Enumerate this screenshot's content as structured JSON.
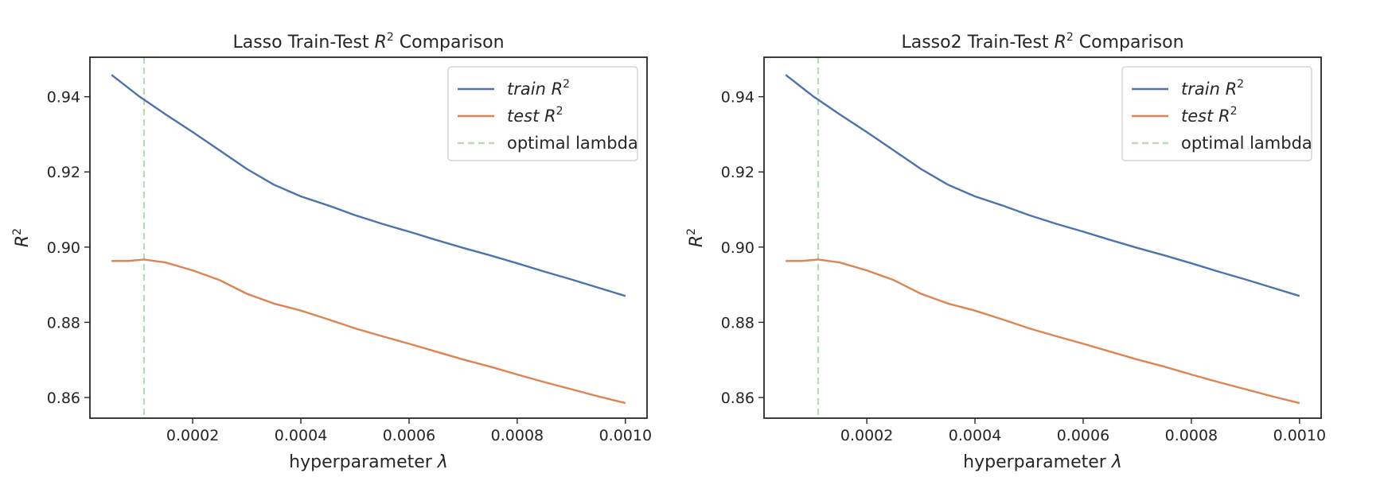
{
  "chart_data": [
    {
      "type": "line",
      "title_prefix": "Lasso Train-Test ",
      "title_symbol": "R",
      "title_sup": "2",
      "title_suffix": " Comparison",
      "xlabel": "hyperparameter ",
      "xlabel_symbol": "λ",
      "ylabel_symbol": "R",
      "ylabel_sup": "2",
      "xlim": [
        1e-05,
        0.00104
      ],
      "ylim": [
        0.8545,
        0.9505
      ],
      "x_ticks": [
        0.0002,
        0.0004,
        0.0006,
        0.0008,
        0.001
      ],
      "x_tick_labels": [
        "0.0002",
        "0.0004",
        "0.0006",
        "0.0008",
        "0.0010"
      ],
      "y_ticks": [
        0.86,
        0.88,
        0.9,
        0.92,
        0.94
      ],
      "y_tick_labels": [
        "0.86",
        "0.88",
        "0.90",
        "0.92",
        "0.94"
      ],
      "grid": false,
      "legend_position": "top-right",
      "optimal_lambda": 0.00011,
      "series": [
        {
          "name": "train",
          "legend_sup": "2",
          "legend_symbol": "R",
          "color": "#4c72b0",
          "style": "solid",
          "x": [
            5e-05,
            0.0001,
            0.00015,
            0.0002,
            0.00025,
            0.0003,
            0.00035,
            0.0004,
            0.00045,
            0.0005,
            0.00055,
            0.0006,
            0.00065,
            0.0007,
            0.00075,
            0.0008,
            0.00085,
            0.0009,
            0.00095,
            0.001
          ],
          "y": [
            0.9458,
            0.9402,
            0.9353,
            0.9306,
            0.9257,
            0.9208,
            0.9166,
            0.9135,
            0.9111,
            0.9085,
            0.9062,
            0.9041,
            0.9019,
            0.8998,
            0.8978,
            0.8957,
            0.8935,
            0.8914,
            0.8892,
            0.887
          ]
        },
        {
          "name": "test",
          "legend_sup": "2",
          "legend_symbol": "R",
          "color": "#dd8452",
          "style": "solid",
          "x": [
            5e-05,
            8e-05,
            0.00011,
            0.00015,
            0.0002,
            0.00025,
            0.0003,
            0.00035,
            0.0004,
            0.00045,
            0.0005,
            0.00055,
            0.0006,
            0.00065,
            0.0007,
            0.00075,
            0.0008,
            0.00085,
            0.0009,
            0.00095,
            0.001
          ],
          "y": [
            0.8963,
            0.8963,
            0.8967,
            0.8959,
            0.8938,
            0.8912,
            0.8876,
            0.885,
            0.8831,
            0.8808,
            0.8784,
            0.8763,
            0.8743,
            0.8722,
            0.8701,
            0.8682,
            0.8661,
            0.8641,
            0.8622,
            0.8603,
            0.8585
          ]
        }
      ],
      "vline_legend": "optimal lambda",
      "vline_color": "#b5dcb6"
    },
    {
      "type": "line",
      "title_prefix": "Lasso2 Train-Test ",
      "title_symbol": "R",
      "title_sup": "2",
      "title_suffix": " Comparison",
      "xlabel": "hyperparameter ",
      "xlabel_symbol": "λ",
      "ylabel_symbol": "R",
      "ylabel_sup": "2",
      "xlim": [
        1e-05,
        0.00104
      ],
      "ylim": [
        0.8545,
        0.9505
      ],
      "x_ticks": [
        0.0002,
        0.0004,
        0.0006,
        0.0008,
        0.001
      ],
      "x_tick_labels": [
        "0.0002",
        "0.0004",
        "0.0006",
        "0.0008",
        "0.0010"
      ],
      "y_ticks": [
        0.86,
        0.88,
        0.9,
        0.92,
        0.94
      ],
      "y_tick_labels": [
        "0.86",
        "0.88",
        "0.90",
        "0.92",
        "0.94"
      ],
      "grid": false,
      "legend_position": "top-right",
      "optimal_lambda": 0.00011,
      "series": [
        {
          "name": "train",
          "legend_sup": "2",
          "legend_symbol": "R",
          "color": "#4c72b0",
          "style": "solid",
          "x": [
            5e-05,
            0.0001,
            0.00015,
            0.0002,
            0.00025,
            0.0003,
            0.00035,
            0.0004,
            0.00045,
            0.0005,
            0.00055,
            0.0006,
            0.00065,
            0.0007,
            0.00075,
            0.0008,
            0.00085,
            0.0009,
            0.00095,
            0.001
          ],
          "y": [
            0.9458,
            0.9402,
            0.9353,
            0.9306,
            0.9257,
            0.9208,
            0.9166,
            0.9135,
            0.9111,
            0.9085,
            0.9062,
            0.9041,
            0.9019,
            0.8998,
            0.8978,
            0.8957,
            0.8935,
            0.8914,
            0.8892,
            0.887
          ]
        },
        {
          "name": "test",
          "legend_sup": "2",
          "legend_symbol": "R",
          "color": "#dd8452",
          "style": "solid",
          "x": [
            5e-05,
            8e-05,
            0.00011,
            0.00015,
            0.0002,
            0.00025,
            0.0003,
            0.00035,
            0.0004,
            0.00045,
            0.0005,
            0.00055,
            0.0006,
            0.00065,
            0.0007,
            0.00075,
            0.0008,
            0.00085,
            0.0009,
            0.00095,
            0.001
          ],
          "y": [
            0.8963,
            0.8963,
            0.8967,
            0.8959,
            0.8938,
            0.8912,
            0.8876,
            0.885,
            0.8831,
            0.8808,
            0.8784,
            0.8763,
            0.8743,
            0.8722,
            0.8701,
            0.8682,
            0.8661,
            0.8641,
            0.8622,
            0.8603,
            0.8585
          ]
        }
      ],
      "vline_legend": "optimal lambda",
      "vline_color": "#b5dcb6"
    }
  ]
}
